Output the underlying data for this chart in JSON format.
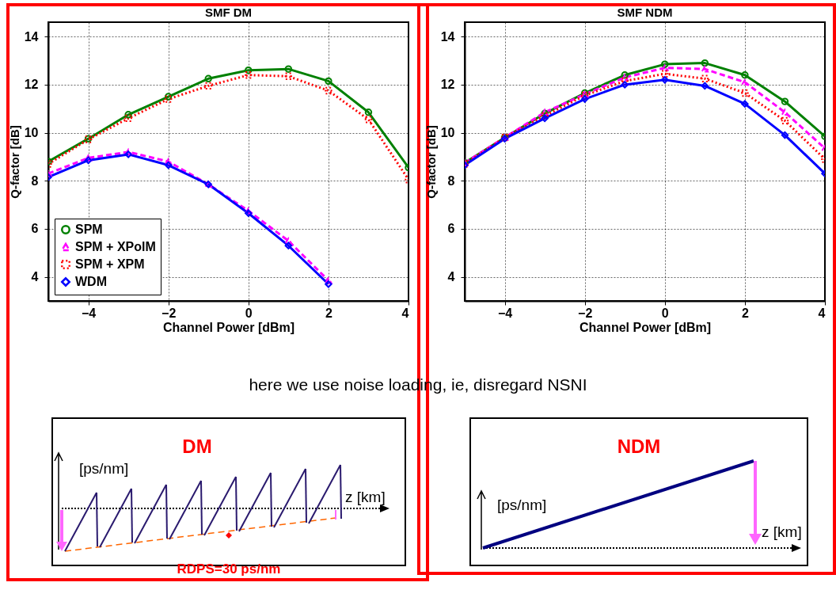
{
  "chart_data": [
    {
      "type": "line",
      "title": "SMF DM",
      "xlabel": "Channel Power [dBm]",
      "ylabel": "Q-factor [dB]",
      "x": [
        -5,
        -4,
        -3,
        -2,
        -1,
        0,
        1,
        2,
        3,
        4
      ],
      "xlim": [
        -5,
        4
      ],
      "xticks": [
        -4,
        -2,
        0,
        2,
        4
      ],
      "ylim": [
        3,
        14.6
      ],
      "yticks": [
        4,
        6,
        8,
        10,
        12,
        14
      ],
      "grid": true,
      "legend": "bottom left",
      "series": [
        {
          "name": "SPM",
          "color": "#008000",
          "marker": "circle",
          "line_style": "solid",
          "values": [
            8.8,
            9.75,
            10.75,
            11.5,
            12.25,
            12.6,
            12.65,
            12.15,
            10.85,
            8.55
          ]
        },
        {
          "name": "SPM + XPolM",
          "color": "#ff00ff",
          "marker": "triangle",
          "line_style": "dashed",
          "values": [
            8.3,
            8.95,
            9.2,
            8.8,
            7.85,
            6.75,
            5.5,
            3.85,
            null,
            null
          ]
        },
        {
          "name": "SPM + XPM",
          "color": "#ff0000",
          "marker": "square",
          "line_style": "dotted",
          "values": [
            8.7,
            9.72,
            10.6,
            11.4,
            11.95,
            12.4,
            12.35,
            11.75,
            10.55,
            8.05
          ]
        },
        {
          "name": "WDM",
          "color": "#0000ff",
          "marker": "diamond",
          "line_style": "solid",
          "values": [
            8.15,
            8.85,
            9.1,
            8.65,
            7.85,
            6.65,
            5.3,
            3.7,
            null,
            null
          ]
        }
      ],
      "annotations": [
        "here we use noise loading, ie, disregard NSNI",
        "DM",
        "[ps/nm]",
        "z [km]",
        "RDPS=30 ps/nm"
      ]
    },
    {
      "type": "line",
      "title": "SMF NDM",
      "xlabel": "Channel Power [dBm]",
      "ylabel": "Q-factor [dB]",
      "x": [
        -5,
        -4,
        -3,
        -2,
        -1,
        0,
        1,
        2,
        3,
        4
      ],
      "xlim": [
        -5,
        4
      ],
      "xticks": [
        -4,
        -2,
        0,
        2,
        4
      ],
      "ylim": [
        3,
        14.6
      ],
      "yticks": [
        4,
        6,
        8,
        10,
        12,
        14
      ],
      "grid": true,
      "legend": "bottom left",
      "series": [
        {
          "name": "SPM",
          "color": "#008000",
          "marker": "circle",
          "line_style": "solid",
          "values": [
            8.75,
            9.8,
            10.8,
            11.65,
            12.4,
            12.85,
            12.9,
            12.4,
            11.3,
            9.85
          ]
        },
        {
          "name": "SPM + XPolM",
          "color": "#ff00ff",
          "marker": "triangle",
          "line_style": "dashed",
          "values": [
            8.75,
            9.8,
            10.85,
            11.6,
            12.3,
            12.7,
            12.65,
            12.1,
            10.85,
            9.35
          ]
        },
        {
          "name": "SPM + XPM",
          "color": "#ff0000",
          "marker": "square",
          "line_style": "dotted",
          "values": [
            8.7,
            9.8,
            10.7,
            11.55,
            12.15,
            12.45,
            12.25,
            11.65,
            10.5,
            8.9
          ]
        },
        {
          "name": "WDM",
          "color": "#0000ff",
          "marker": "diamond",
          "line_style": "solid",
          "values": [
            8.65,
            9.75,
            10.6,
            11.4,
            12.0,
            12.2,
            11.95,
            11.2,
            9.9,
            8.3
          ]
        }
      ],
      "annotations": [
        "NDM",
        "[ps/nm]",
        "z [km]"
      ]
    }
  ]
}
